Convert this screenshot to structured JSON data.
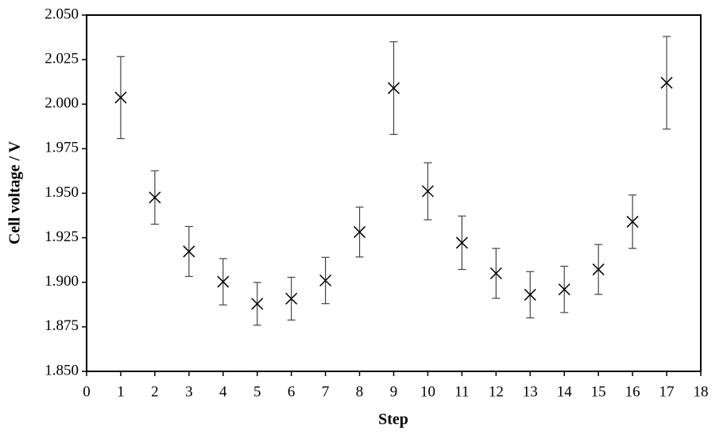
{
  "chart_data": {
    "type": "scatter",
    "x_label": "Step",
    "y_label": "Cell voltage / V",
    "x": [
      1,
      2,
      3,
      4,
      5,
      6,
      7,
      8,
      9,
      10,
      11,
      12,
      13,
      14,
      15,
      16,
      17
    ],
    "values": [
      2.0037,
      1.9476,
      1.9173,
      1.9003,
      1.8879,
      1.8908,
      1.901,
      1.9282,
      2.009,
      1.9511,
      1.9222,
      1.905,
      1.893,
      1.896,
      1.9072,
      1.934,
      2.012
    ],
    "errors": [
      0.023,
      0.015,
      0.014,
      0.013,
      0.012,
      0.012,
      0.013,
      0.014,
      0.026,
      0.016,
      0.015,
      0.014,
      0.013,
      0.013,
      0.014,
      0.015,
      0.026
    ],
    "color": "#000000",
    "xlim": [
      0,
      18
    ],
    "xticks": [
      0,
      1,
      2,
      3,
      4,
      5,
      6,
      7,
      8,
      9,
      10,
      11,
      12,
      13,
      14,
      15,
      16,
      17,
      18
    ],
    "ylim": [
      1.85,
      2.05
    ],
    "yticks": [
      {
        "value": 1.85,
        "label": "1.850"
      },
      {
        "value": 1.875,
        "label": "1.875"
      },
      {
        "value": 1.9,
        "label": "1.900"
      },
      {
        "value": 1.925,
        "label": "1.925"
      },
      {
        "value": 1.95,
        "label": "1.950"
      },
      {
        "value": 1.975,
        "label": "1.975"
      },
      {
        "value": 2.0,
        "label": "2.000"
      },
      {
        "value": 2.025,
        "label": "2.025"
      },
      {
        "value": 2.05,
        "label": "2.050"
      }
    ]
  }
}
